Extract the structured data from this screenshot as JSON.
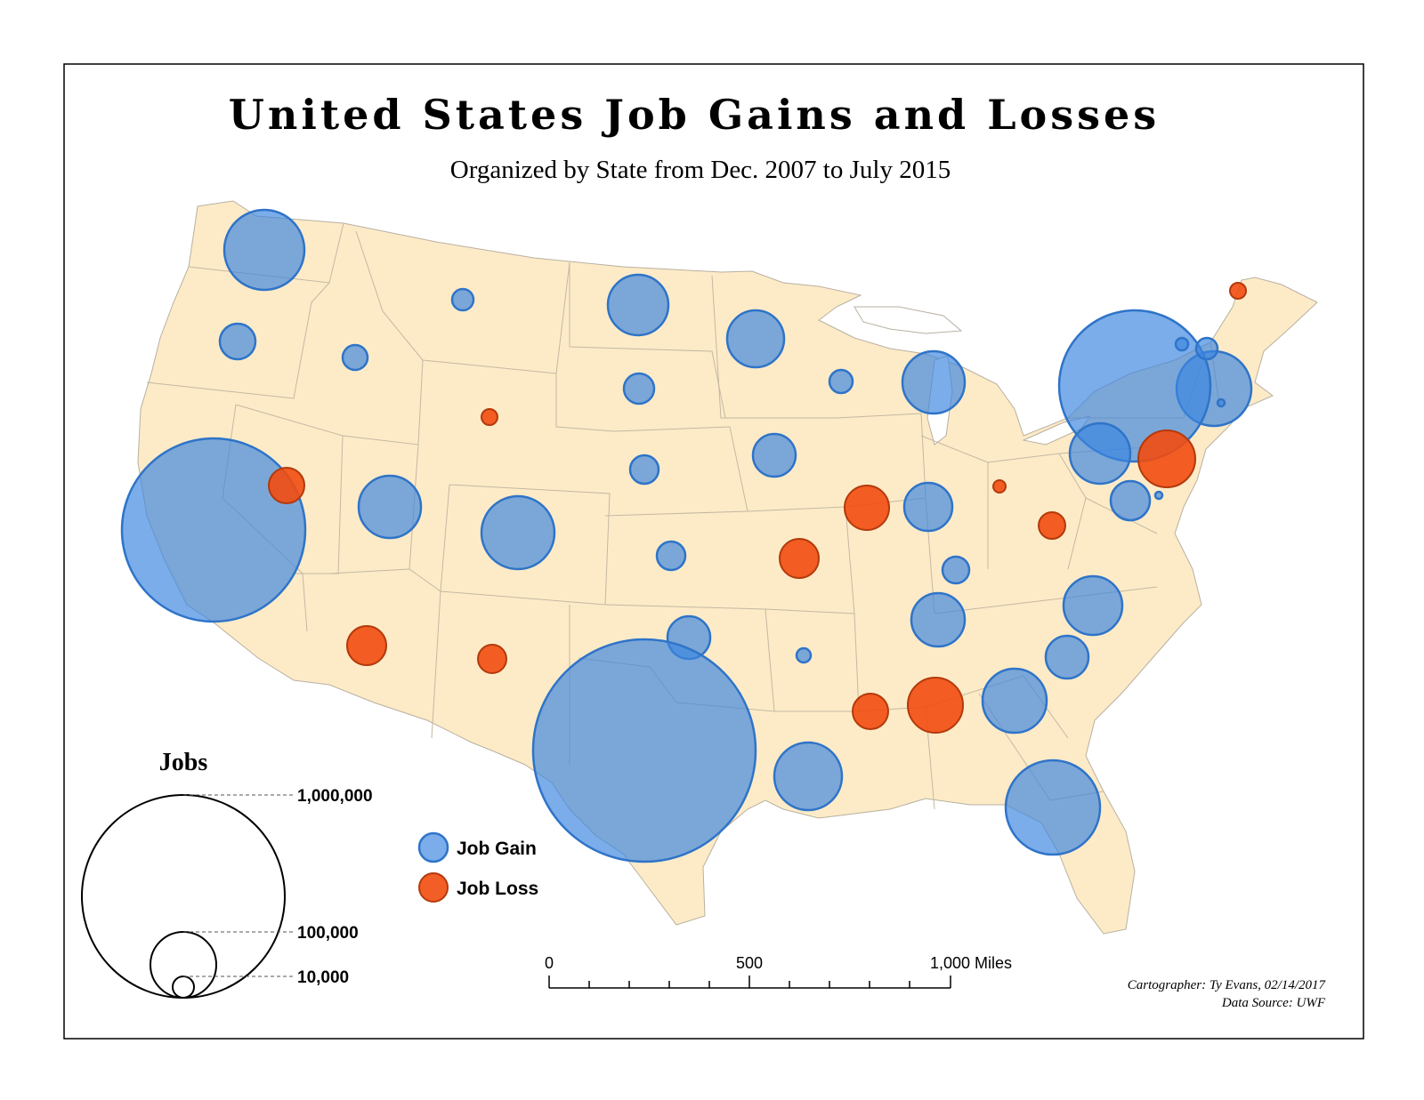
{
  "title": "United States Job Gains and Losses",
  "subtitle": "Organized by State from Dec. 2007 to July 2015",
  "legend": {
    "title": "Jobs",
    "values": [
      "1,000,000",
      "100,000",
      "10,000"
    ],
    "gain_label": "Job Gain",
    "loss_label": "Job Loss",
    "gain_color": "#3d86e0",
    "loss_color": "#f24d0f"
  },
  "scale_bar": {
    "labels": [
      "0",
      "500",
      "1,000 Miles"
    ]
  },
  "credits": {
    "cartographer": "Cartographer: Ty Evans, 02/14/2017",
    "source": "Data Source: UWF"
  },
  "map_data": {
    "map_fill": "#fdebc8",
    "symbols": [
      {
        "state": "WA",
        "type": "gain"
      },
      {
        "state": "OR",
        "type": "gain"
      },
      {
        "state": "CA",
        "type": "gain"
      },
      {
        "state": "NV",
        "type": "loss"
      },
      {
        "state": "ID",
        "type": "gain"
      },
      {
        "state": "MT",
        "type": "gain"
      },
      {
        "state": "WY",
        "type": "loss"
      },
      {
        "state": "UT",
        "type": "gain"
      },
      {
        "state": "CO",
        "type": "gain"
      },
      {
        "state": "AZ",
        "type": "loss"
      },
      {
        "state": "NM",
        "type": "loss"
      },
      {
        "state": "ND",
        "type": "gain"
      },
      {
        "state": "SD",
        "type": "gain"
      },
      {
        "state": "NE",
        "type": "gain"
      },
      {
        "state": "KS",
        "type": "gain"
      },
      {
        "state": "OK",
        "type": "gain"
      },
      {
        "state": "TX",
        "type": "gain"
      },
      {
        "state": "MN",
        "type": "gain"
      },
      {
        "state": "IA",
        "type": "gain"
      },
      {
        "state": "MO",
        "type": "loss"
      },
      {
        "state": "AR",
        "type": "gain"
      },
      {
        "state": "LA",
        "type": "gain"
      },
      {
        "state": "WI",
        "type": "gain"
      },
      {
        "state": "IL",
        "type": "loss"
      },
      {
        "state": "MI",
        "type": "gain"
      },
      {
        "state": "IN",
        "type": "gain"
      },
      {
        "state": "OH",
        "type": "loss"
      },
      {
        "state": "KY",
        "type": "gain"
      },
      {
        "state": "TN",
        "type": "gain"
      },
      {
        "state": "MS",
        "type": "loss"
      },
      {
        "state": "AL",
        "type": "loss"
      },
      {
        "state": "GA",
        "type": "gain"
      },
      {
        "state": "FL",
        "type": "gain"
      },
      {
        "state": "SC",
        "type": "gain"
      },
      {
        "state": "NC",
        "type": "gain"
      },
      {
        "state": "WV",
        "type": "loss"
      },
      {
        "state": "PA",
        "type": "gain"
      },
      {
        "state": "NY",
        "type": "gain"
      },
      {
        "state": "NJ",
        "type": "loss"
      },
      {
        "state": "MD",
        "type": "gain"
      },
      {
        "state": "DE",
        "type": "gain"
      },
      {
        "state": "MA",
        "type": "gain"
      },
      {
        "state": "NH",
        "type": "gain"
      },
      {
        "state": "VT",
        "type": "gain"
      },
      {
        "state": "RI",
        "type": "gain"
      },
      {
        "state": "ME",
        "type": "loss"
      }
    ]
  }
}
